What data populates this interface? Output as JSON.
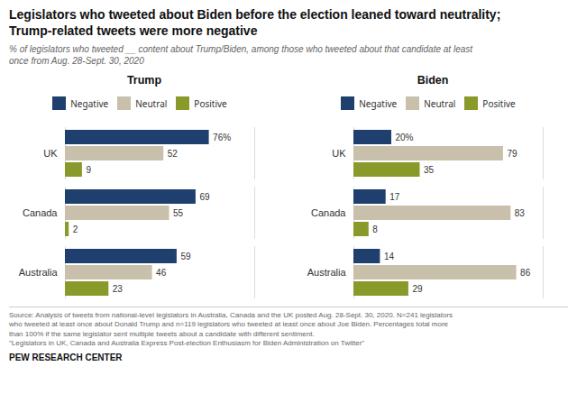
{
  "title": "Legislators who tweeted about Biden before the election leaned toward neutrality;\nTrump-related tweets were more negative",
  "subtitle": "% of legislators who tweeted __ content about Trump/Biden, among those who tweeted about that candidate at least\nonce from Aug. 28-Sept. 30, 2020",
  "source": "Source: Analysis of tweets from national-level legislators in Australia, Canada and the UK posted Aug. 28-Sept. 30, 2020. N=241 legislators\nwho tweeted at least once about Donald Trump and n=119 legislators who tweeted at least once about Joe Biden. Percentages total more\nthan 100% if the same legislator sent multiple tweets about a candidate with different sentiment.\n\"Legislators in UK, Canada and Australia Express Post-election Enthusiasm for Biden Administration on Twitter\"",
  "credit": "PEW RESEARCH CENTER",
  "chart_data": [
    {
      "type": "bar",
      "title": "Trump",
      "orientation": "horizontal",
      "categories": [
        "UK",
        "Canada",
        "Australia"
      ],
      "series": [
        {
          "name": "Negative",
          "color": "#1f3f6e",
          "values": [
            76,
            69,
            59
          ],
          "value_labels": [
            "76%",
            "69",
            "59"
          ]
        },
        {
          "name": "Neutral",
          "color": "#c8c0aa",
          "values": [
            52,
            55,
            46
          ]
        },
        {
          "name": "Positive",
          "color": "#8a9a2a",
          "values": [
            9,
            2,
            23
          ]
        }
      ],
      "xlim": [
        0,
        100
      ],
      "tick_labels": "y",
      "data_labels": true,
      "legend": "top"
    },
    {
      "type": "bar",
      "title": "Biden",
      "orientation": "horizontal",
      "categories": [
        "UK",
        "Canada",
        "Australia"
      ],
      "series": [
        {
          "name": "Negative",
          "color": "#1f3f6e",
          "values": [
            20,
            17,
            14
          ],
          "value_labels": [
            "20%",
            "17",
            "14"
          ]
        },
        {
          "name": "Neutral",
          "color": "#c8c0aa",
          "values": [
            79,
            83,
            86
          ]
        },
        {
          "name": "Positive",
          "color": "#8a9a2a",
          "values": [
            35,
            8,
            29
          ]
        }
      ],
      "xlim": [
        0,
        100
      ],
      "tick_labels": "y",
      "data_labels": true,
      "legend": "top"
    }
  ]
}
